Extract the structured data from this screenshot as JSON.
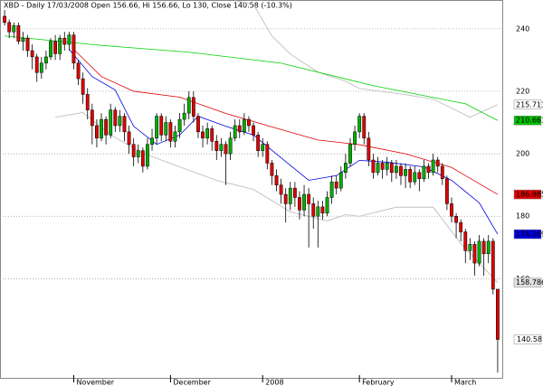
{
  "chart_data": {
    "type": "candlestick",
    "title": "XBD - Daily 17/03/2008 Open 156.66, Hi 156.66, Lo 130, Close 140.58 (-10.3%)",
    "xlim": [
      -1,
      108
    ],
    "ylim": [
      128,
      249.2
    ],
    "yticks": [
      160,
      180,
      200,
      220,
      240
    ],
    "xticks": [
      {
        "value": 15,
        "label": "November"
      },
      {
        "value": 36,
        "label": "December"
      },
      {
        "value": 56,
        "label": "2008"
      },
      {
        "value": 77,
        "label": "February"
      },
      {
        "value": 97,
        "label": "March"
      }
    ],
    "grid": true,
    "up_color": "#00b000",
    "down_color": "#e00000",
    "open": [
      244,
      242,
      239,
      241,
      236,
      237,
      233,
      231,
      226,
      229,
      231,
      236,
      232,
      237,
      235,
      238,
      229,
      224,
      219,
      214,
      209,
      205,
      211,
      206,
      214,
      209,
      212,
      207,
      203,
      199,
      201,
      196,
      203,
      205,
      212,
      206,
      210,
      204,
      207,
      211,
      213,
      218,
      212,
      207,
      205,
      208,
      204,
      201,
      203,
      200,
      205,
      209,
      207,
      211,
      209,
      206,
      201,
      203,
      197,
      193,
      190,
      187,
      184,
      189,
      186,
      182,
      187,
      184,
      180,
      183,
      181,
      186,
      191,
      189,
      194,
      197,
      203,
      207,
      212,
      205,
      198,
      194,
      197,
      195,
      197,
      194,
      196,
      193,
      195,
      191,
      194,
      192,
      196,
      194,
      198,
      196,
      192,
      184,
      180,
      178,
      175,
      169,
      171,
      165,
      172,
      168,
      172,
      156.66
    ],
    "high": [
      246,
      243,
      242,
      242,
      239,
      238,
      235,
      232,
      231,
      233,
      237,
      238,
      238,
      239,
      239,
      239,
      230,
      226,
      221,
      216,
      211,
      213,
      212,
      216,
      215,
      214,
      213,
      209,
      205,
      203,
      202,
      205,
      208,
      213,
      213,
      212,
      211,
      209,
      213,
      216,
      220,
      220,
      213,
      209,
      210,
      209,
      206,
      205,
      204,
      207,
      211,
      211,
      213,
      212,
      210,
      207,
      205,
      204,
      198,
      195,
      192,
      189,
      191,
      191,
      188,
      190,
      189,
      186,
      185,
      185,
      188,
      193,
      193,
      196,
      200,
      205,
      209,
      213,
      213,
      207,
      200,
      199,
      198,
      199,
      198,
      198,
      197,
      197,
      196,
      196,
      195,
      198,
      197,
      200,
      199,
      197,
      193,
      186,
      181,
      179,
      176,
      173,
      172,
      174,
      173,
      174,
      173,
      156.66
    ],
    "low": [
      241,
      237,
      237,
      235,
      233,
      231,
      227,
      223,
      224,
      227,
      230,
      230,
      230,
      233,
      233,
      227,
      222,
      216,
      211,
      203,
      202,
      204,
      203,
      205,
      207,
      207,
      204,
      200,
      196,
      197,
      194,
      195,
      201,
      203,
      204,
      204,
      202,
      202,
      205,
      209,
      211,
      210,
      205,
      202,
      203,
      201,
      198,
      199,
      190,
      198,
      204,
      205,
      206,
      207,
      204,
      199,
      199,
      195,
      190,
      188,
      184,
      178,
      182,
      183,
      179,
      180,
      170,
      176,
      170,
      179,
      180,
      184,
      187,
      188,
      192,
      196,
      201,
      205,
      203,
      196,
      192,
      193,
      192,
      193,
      191,
      192,
      190,
      189,
      189,
      190,
      188,
      191,
      192,
      193,
      194,
      190,
      182,
      178,
      173,
      172,
      165,
      166,
      161,
      164,
      161,
      165,
      155,
      130
    ],
    "close": [
      242,
      239,
      241,
      236,
      237,
      233,
      231,
      226,
      229,
      231,
      236,
      232,
      237,
      235,
      238,
      229,
      224,
      219,
      214,
      209,
      205,
      211,
      206,
      214,
      209,
      212,
      207,
      203,
      199,
      201,
      196,
      203,
      205,
      212,
      206,
      210,
      204,
      207,
      211,
      213,
      218,
      212,
      207,
      205,
      208,
      204,
      201,
      203,
      200,
      205,
      209,
      207,
      211,
      209,
      206,
      201,
      203,
      197,
      193,
      190,
      187,
      184,
      189,
      186,
      182,
      187,
      184,
      180,
      183,
      181,
      186,
      191,
      189,
      194,
      197,
      203,
      207,
      212,
      205,
      198,
      194,
      197,
      195,
      197,
      194,
      196,
      193,
      195,
      191,
      194,
      192,
      196,
      194,
      198,
      196,
      192,
      184,
      180,
      178,
      175,
      169,
      171,
      165,
      172,
      168,
      172,
      156.66,
      140.58
    ],
    "series": [
      {
        "color": "#b8b8b8",
        "x": [
          50,
          54,
          58,
          62,
          68,
          74,
          77,
          87,
          93,
          101,
          107
        ],
        "values": [
          249,
          247.8,
          237.7,
          231.9,
          226.1,
          223.2,
          220.9,
          218.9,
          217.5,
          211.7,
          215.711
        ],
        "label_bg": "#ffffff",
        "label_fg": "#333333"
      },
      {
        "color": "#00d000",
        "x": [
          0,
          20,
          40,
          60,
          80,
          100,
          107
        ],
        "values": [
          237.7,
          234.8,
          232.5,
          229,
          221.8,
          216,
          210.661
        ],
        "label_bg": "#00c000",
        "label_fg": "#ffffff"
      },
      {
        "color": "#e00000",
        "x": [
          15,
          21,
          28,
          38,
          48,
          58,
          68,
          77,
          87,
          97,
          107
        ],
        "values": [
          233.4,
          224.7,
          220,
          218.1,
          212.9,
          208.6,
          204.4,
          202.9,
          200,
          195.6,
          186.985
        ],
        "label_bg": "#e00000",
        "label_fg": "#ffffff"
      },
      {
        "color": "#0000e0",
        "x": [
          14,
          19,
          24,
          28,
          33,
          38,
          42,
          48,
          54,
          60,
          66,
          72,
          77,
          83,
          91,
          97,
          103,
          107
        ],
        "values": [
          233.4,
          224.7,
          220.4,
          208.8,
          203,
          206,
          212,
          208.8,
          206,
          198.7,
          191.5,
          193,
          197.9,
          197.3,
          195.8,
          191.5,
          184.3,
          174.269
        ],
        "label_bg": "#0000e0",
        "label_fg": "#ffffff"
      },
      {
        "color": "#b8b8b8",
        "x": [
          11,
          17,
          23,
          30,
          38,
          46,
          54,
          62,
          70,
          74,
          77,
          85,
          93,
          99,
          107
        ],
        "values": [
          211.7,
          213.2,
          206,
          200.2,
          195.8,
          191.5,
          188.6,
          181.4,
          178.5,
          180.5,
          180,
          182.9,
          182.9,
          171.3,
          158.786
        ],
        "label_bg": "#e0e0e0",
        "label_fg": "#333333"
      }
    ]
  }
}
